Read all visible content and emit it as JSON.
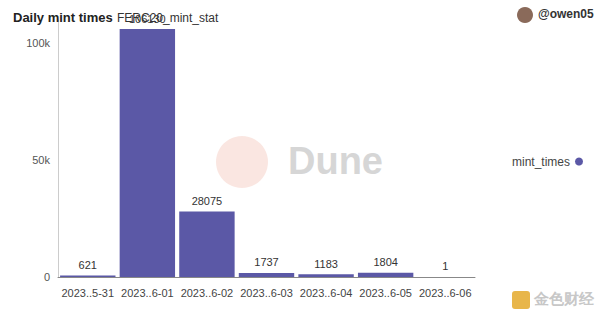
{
  "chart_data": {
    "type": "bar",
    "title": "Daily mint times",
    "subtitle": "FERC20_mint_stat",
    "annotations": [
      "@owen05",
      "Dune",
      "金色财经"
    ],
    "categories": [
      "2023..5-31",
      "2023..6-01",
      "2023..6-02",
      "2023..6-03",
      "2023..6-04",
      "2023..6-05",
      "2023..6-06"
    ],
    "series": [
      {
        "name": "mint_times",
        "color": "#5b58a6",
        "values": [
          621,
          106130,
          28075,
          1737,
          1183,
          1804,
          1
        ]
      }
    ],
    "ylim": [
      0,
      110000
    ],
    "yticks": [
      0,
      {
        "value": 50000,
        "label": "50k"
      },
      {
        "value": 100000,
        "label": "100k"
      }
    ],
    "grid": false,
    "data_labels": true,
    "legend": "right"
  }
}
